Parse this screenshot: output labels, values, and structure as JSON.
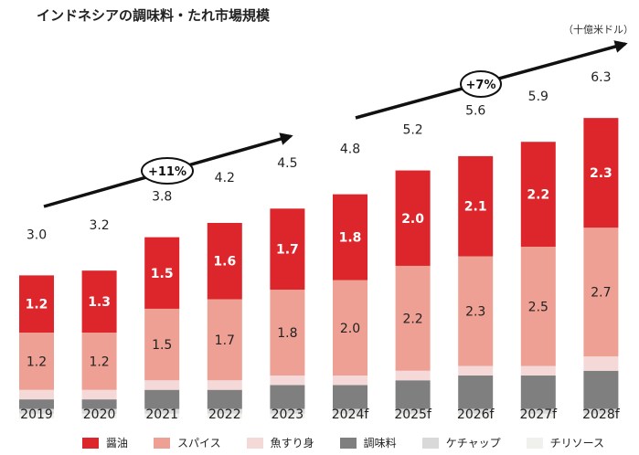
{
  "title": "インドネシアの調味料・たれ市場規模",
  "unit": "（十億米ドル）",
  "chart_data": {
    "type": "bar",
    "stacked": true,
    "categories": [
      "2019",
      "2020",
      "2021",
      "2022",
      "2023",
      "2024f",
      "2025f",
      "2026f",
      "2027f",
      "2028f"
    ],
    "totals": [
      3.0,
      3.2,
      3.8,
      4.2,
      4.5,
      4.8,
      5.2,
      5.6,
      5.9,
      6.3
    ],
    "series": [
      {
        "name": "チリソース",
        "color": "#f0f0ec",
        "values": [
          0.1,
          0.1,
          0.1,
          0.1,
          0.1,
          0.1,
          0.1,
          0.1,
          0.1,
          0.1
        ]
      },
      {
        "name": "ケチャップ",
        "color": "#d9d9d9",
        "values": [
          0.1,
          0.1,
          0.1,
          0.1,
          0.1,
          0.1,
          0.1,
          0.1,
          0.1,
          0.1
        ]
      },
      {
        "name": "調味料",
        "color": "#7f7f7f",
        "values": [
          0.2,
          0.2,
          0.4,
          0.4,
          0.5,
          0.5,
          0.6,
          0.7,
          0.7,
          0.8
        ]
      },
      {
        "name": "魚すり身",
        "color": "#f5d9d9",
        "values": [
          0.2,
          0.2,
          0.2,
          0.2,
          0.2,
          0.2,
          0.2,
          0.2,
          0.2,
          0.3
        ]
      },
      {
        "name": "スパイス",
        "color": "#eda093",
        "values": [
          1.2,
          1.2,
          1.5,
          1.7,
          1.8,
          2.0,
          2.2,
          2.3,
          2.5,
          2.7
        ],
        "show_labels": true
      },
      {
        "name": "醤油",
        "color": "#dc262b",
        "values": [
          1.2,
          1.3,
          1.5,
          1.6,
          1.7,
          1.8,
          2.0,
          2.1,
          2.2,
          2.3
        ],
        "show_labels": true
      }
    ],
    "annotations": [
      "+11%",
      "+7%"
    ],
    "legend_order": [
      "醤油",
      "スパイス",
      "魚すり身",
      "調味料",
      "ケチャップ",
      "チリソース"
    ],
    "ylim": [
      0,
      6.8
    ],
    "legend": "bottom",
    "grid": false
  }
}
